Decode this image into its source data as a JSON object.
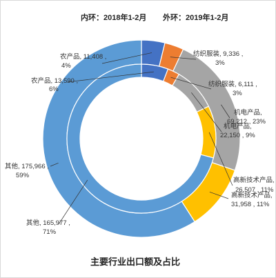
{
  "chart_data": {
    "type": "donut",
    "subtitle_inner": "内环：2018年1-2月",
    "subtitle_outer": "外环：2019年1-2月",
    "title": "主要行业出口额及占比",
    "categories": [
      "农产品",
      "纺织服装",
      "机电产品",
      "高新技术产品",
      "其他"
    ],
    "colors": [
      "#4472C4",
      "#ED7D31",
      "#A5A5A5",
      "#FFC000",
      "#5B9BD5"
    ],
    "series": [
      {
        "ring": "inner",
        "values": [
          13590,
          6111,
          22150,
          26507,
          165977
        ],
        "percents": [
          "6%",
          "3%",
          "9%",
          "11%",
          "71%"
        ]
      },
      {
        "ring": "outer",
        "values": [
          11408,
          9336,
          69212,
          31958,
          175966
        ],
        "percents": [
          "4%",
          "3%",
          "23%",
          "11%",
          "59%"
        ]
      }
    ],
    "labels": [
      {
        "line1": "农产品, 11,408 ,",
        "line2": "4%"
      },
      {
        "line1": "纺织服装, 9,336 ,",
        "line2": "3%"
      },
      {
        "line1": "机电产品,",
        "line2": "69,212 , 23%"
      },
      {
        "line1": "高新技术产品,",
        "line2": "31,958 , 11%"
      },
      {
        "line1": "其他, 175,966 ,",
        "line2": "59%"
      },
      {
        "line1": "农产品, 13,590 ,",
        "line2": "6%"
      },
      {
        "line1": "纺织服装, 6,111 ,",
        "line2": "3%"
      },
      {
        "line1": "机电产品,",
        "line2": "22,150 , 9%"
      },
      {
        "line1": "高新技术产品,",
        "line2": "26,507 , 11%"
      },
      {
        "line1": "其他, 165,977 ,",
        "line2": "71%"
      }
    ]
  }
}
